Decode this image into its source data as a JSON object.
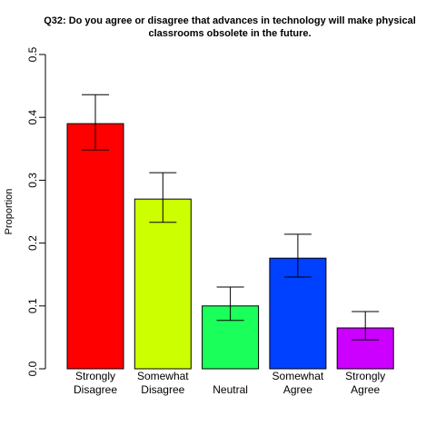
{
  "chart_data": {
    "type": "bar",
    "title": [
      "Q32: Do you agree or disagree that advances in technology will make physical",
      "classrooms obsolete in the future."
    ],
    "ylabel": "Proportion",
    "categories": [
      [
        "Strongly",
        "Disagree"
      ],
      [
        "Somewhat",
        "Disagree"
      ],
      [
        "Neutral"
      ],
      [
        "Somewhat",
        "Agree"
      ],
      [
        "Strongly",
        "Agree"
      ]
    ],
    "values": [
      0.39,
      0.27,
      0.1,
      0.176,
      0.065
    ],
    "ci_lower": [
      0.348,
      0.233,
      0.077,
      0.146,
      0.046
    ],
    "ci_upper": [
      0.436,
      0.312,
      0.13,
      0.214,
      0.091
    ],
    "colors": [
      "#ff0000",
      "#ccff00",
      "#1aff5a",
      "#0040ff",
      "#cc00ff"
    ],
    "ylim": [
      0,
      0.5
    ],
    "yticks": [
      {
        "value": 0,
        "label": "0.0"
      },
      0.1,
      0.2,
      0.3,
      0.4,
      0.5
    ],
    "grid": false
  }
}
